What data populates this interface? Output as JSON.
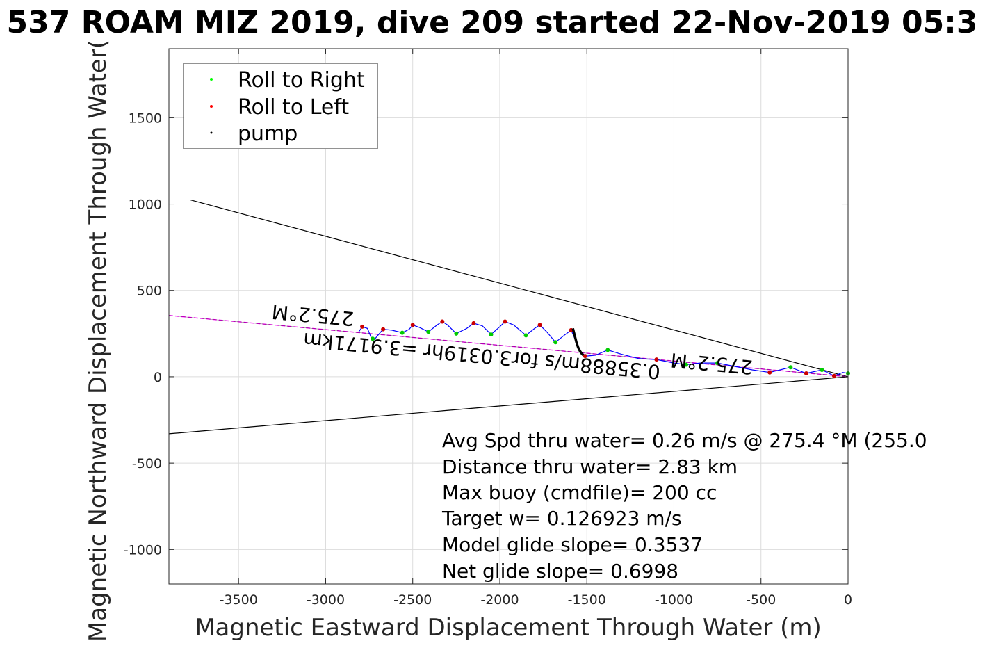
{
  "chart_data": {
    "type": "line",
    "title": "537 ROAM MIZ 2019, dive 209 started 22-Nov-2019 05:3",
    "xlabel": "Magnetic Eastward Displacement Through Water (m)",
    "ylabel": "Magnetic Northward Displacement Through Water(",
    "xlim": [
      -3900,
      0
    ],
    "ylim": [
      -1200,
      1900
    ],
    "xticks": [
      -3500,
      -3000,
      -2500,
      -2000,
      -1500,
      -1000,
      -500,
      0
    ],
    "yticks": [
      -1000,
      -500,
      0,
      500,
      1000,
      1500
    ],
    "grid": true,
    "legend_placement": "top-left",
    "legend": [
      {
        "label": "Roll to Right",
        "color": "#00ff00"
      },
      {
        "label": "Roll to Left",
        "color": "#ff0000"
      },
      {
        "label": "pump",
        "color": "#000000"
      }
    ],
    "series": [
      {
        "name": "Roll to Right",
        "color": "#00cc00",
        "x": [
          -2730,
          -2560,
          -2410,
          -2250,
          -2050,
          -1850,
          -1680,
          -1380,
          -930,
          -750,
          -330,
          -150,
          0
        ],
        "y": [
          220,
          255,
          260,
          250,
          245,
          240,
          200,
          155,
          70,
          80,
          55,
          40,
          20
        ]
      },
      {
        "name": "Roll to Left",
        "color": "#cc0000",
        "x": [
          -2790,
          -2670,
          -2500,
          -2330,
          -2150,
          -1970,
          -1770,
          -1590,
          -1510,
          -1100,
          -450,
          -240,
          -80
        ],
        "y": [
          290,
          275,
          300,
          320,
          310,
          320,
          300,
          270,
          120,
          100,
          25,
          20,
          5
        ]
      },
      {
        "name": "pump",
        "color": "#000000",
        "x": [
          -1580,
          -1570,
          -1560,
          -1550,
          -1540,
          -1530,
          -1520
        ],
        "y": [
          280,
          240,
          200,
          170,
          150,
          135,
          125
        ]
      }
    ],
    "track": {
      "color": "#0000ff",
      "x": [
        -2810,
        -2790,
        -2760,
        -2740,
        -2720,
        -2700,
        -2670,
        -2620,
        -2560,
        -2520,
        -2500,
        -2460,
        -2410,
        -2360,
        -2330,
        -2300,
        -2250,
        -2190,
        -2150,
        -2100,
        -2050,
        -2000,
        -1970,
        -1920,
        -1850,
        -1800,
        -1770,
        -1730,
        -1680,
        -1630,
        -1590,
        -1560,
        -1530,
        -1500,
        -1450,
        -1380,
        -1300,
        -1200,
        -1100,
        -1000,
        -930,
        -850,
        -750,
        -650,
        -550,
        -450,
        -330,
        -240,
        -150,
        -80,
        -30,
        0
      ],
      "y": [
        260,
        290,
        280,
        230,
        215,
        240,
        275,
        270,
        255,
        275,
        300,
        285,
        260,
        300,
        320,
        300,
        250,
        280,
        310,
        295,
        245,
        290,
        320,
        300,
        240,
        280,
        300,
        260,
        200,
        240,
        270,
        200,
        135,
        120,
        125,
        155,
        130,
        105,
        100,
        80,
        70,
        80,
        80,
        60,
        40,
        25,
        55,
        20,
        40,
        5,
        25,
        20
      ]
    },
    "heading_line": {
      "color": "#ff00ff",
      "bearing_label": "275.2°M",
      "x": [
        -3900,
        0
      ],
      "y": [
        355,
        0
      ]
    },
    "cone_lines": {
      "color": "#000000",
      "upper": {
        "x": [
          -3780,
          0
        ],
        "y": [
          1025,
          0
        ]
      },
      "lower": {
        "x": [
          -3900,
          0
        ],
        "y": [
          -330,
          0
        ]
      }
    },
    "rotated_labels": [
      {
        "text": "275.2°M",
        "anchor": {
          "x": -3070,
          "y": 395
        }
      },
      {
        "text": "0.35888m/s for3.0319hr =3.9171km",
        "anchor": {
          "x": -2100,
          "y": 160
        }
      },
      {
        "text": "275.2°M",
        "anchor": {
          "x": -780,
          "y": 115
        }
      }
    ],
    "annotations": [
      "Avg Spd thru water=  0.26 m/s @ 275.4 °M (255.0",
      "Distance thru water=  2.83 km",
      "Max buoy (cmdfile)= 200 cc",
      "Target w= 0.126923 m/s",
      "Model glide slope= 0.3537",
      "Net glide slope= 0.6998"
    ]
  }
}
